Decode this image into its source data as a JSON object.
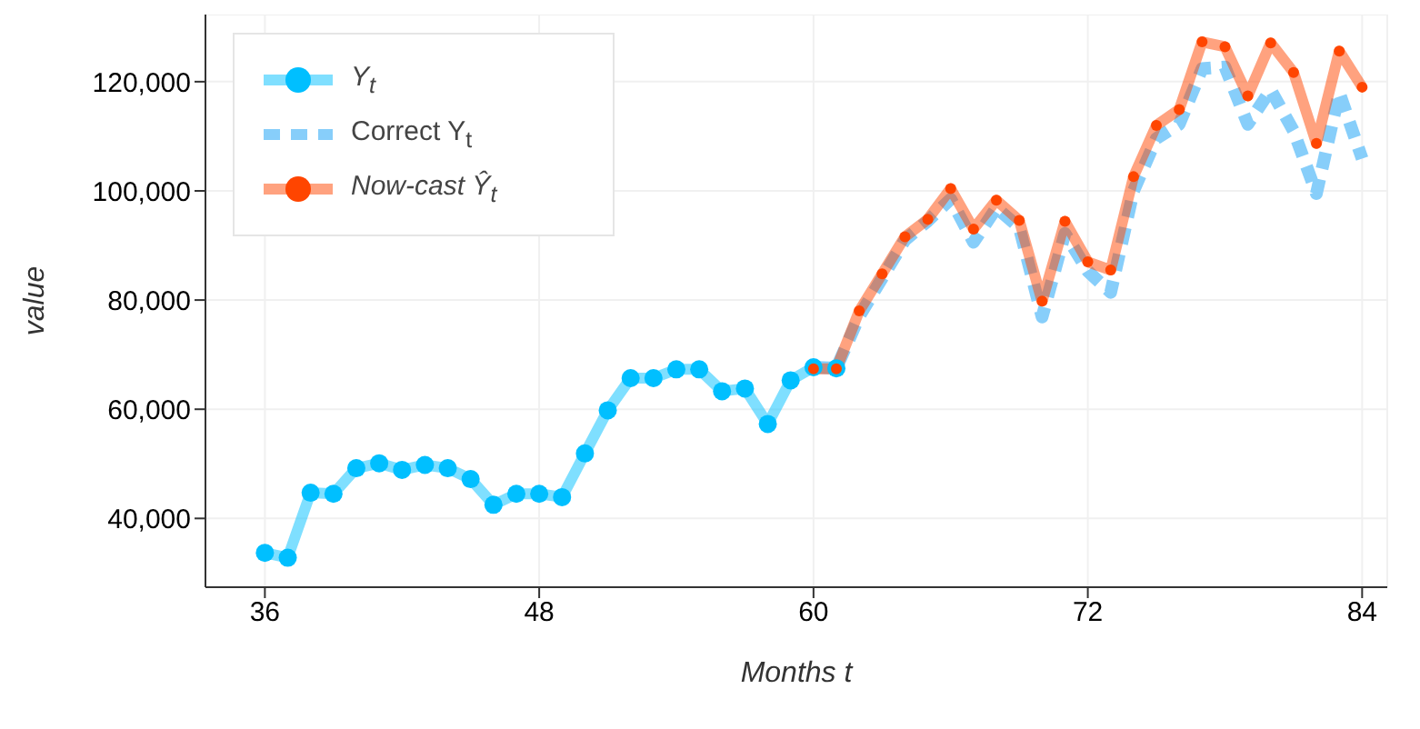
{
  "chart_data": {
    "type": "line",
    "xlabel": "Months t",
    "ylabel": "value",
    "xlim": [
      33.4,
      85.1
    ],
    "xticks": [
      36,
      48,
      60,
      72,
      84
    ],
    "ylim": [
      27400,
      132300
    ],
    "yticks": [
      {
        "value": 40000,
        "label": "40,000"
      },
      {
        "value": 60000,
        "label": "60,000"
      },
      {
        "value": 80000,
        "label": "80,000"
      },
      {
        "value": 100000,
        "label": "100,000"
      },
      {
        "value": 120000,
        "label": "120,000"
      }
    ],
    "grid": true,
    "legend": "top left",
    "series": [
      {
        "name": "Y$_{t}$",
        "color": "#00bfff",
        "marker": "circle",
        "line_style": "solid",
        "x": [
          36,
          37,
          38,
          39,
          40,
          41,
          42,
          43,
          44,
          45,
          46,
          47,
          48,
          49,
          50,
          51,
          52,
          53,
          54,
          55,
          56,
          57,
          58,
          59,
          60,
          61
        ],
        "values": [
          33700,
          32800,
          44700,
          44500,
          49200,
          50100,
          48900,
          49800,
          49200,
          47200,
          42500,
          44500,
          44500,
          43900,
          51900,
          59800,
          65700,
          65700,
          67300,
          67300,
          63300,
          63800,
          57300,
          65300,
          67700,
          67500
        ]
      },
      {
        "name": "Correct Y$_{t}$",
        "color": "#87cefa",
        "marker": "none",
        "line_style": "dashed",
        "x": [
          60,
          61,
          62,
          63,
          64,
          65,
          66,
          67,
          68,
          69,
          70,
          71,
          72,
          73,
          74,
          75,
          76,
          77,
          78,
          79,
          80,
          81,
          82,
          83,
          84
        ],
        "values": [
          67700,
          67500,
          77000,
          84000,
          91000,
          94500,
          98500,
          90600,
          96900,
          93300,
          76900,
          92200,
          85300,
          81400,
          100000,
          109600,
          112200,
          122400,
          122700,
          112200,
          118500,
          111000,
          99500,
          118000,
          105900
        ]
      },
      {
        "name": "Now-cast Ŷ$_{t}$",
        "color": "#ff4500",
        "marker": "circle",
        "line_style": "solid",
        "x": [
          60,
          61,
          62,
          63,
          64,
          65,
          66,
          67,
          68,
          69,
          70,
          71,
          72,
          73,
          74,
          75,
          76,
          77,
          78,
          79,
          80,
          81,
          82,
          83,
          84
        ],
        "values": [
          67400,
          67400,
          78000,
          84800,
          91600,
          94800,
          100400,
          93000,
          98300,
          94600,
          79800,
          94400,
          87000,
          85500,
          102600,
          112000,
          114900,
          127300,
          126400,
          117400,
          127100,
          121700,
          108700,
          125600,
          119000
        ]
      }
    ]
  }
}
